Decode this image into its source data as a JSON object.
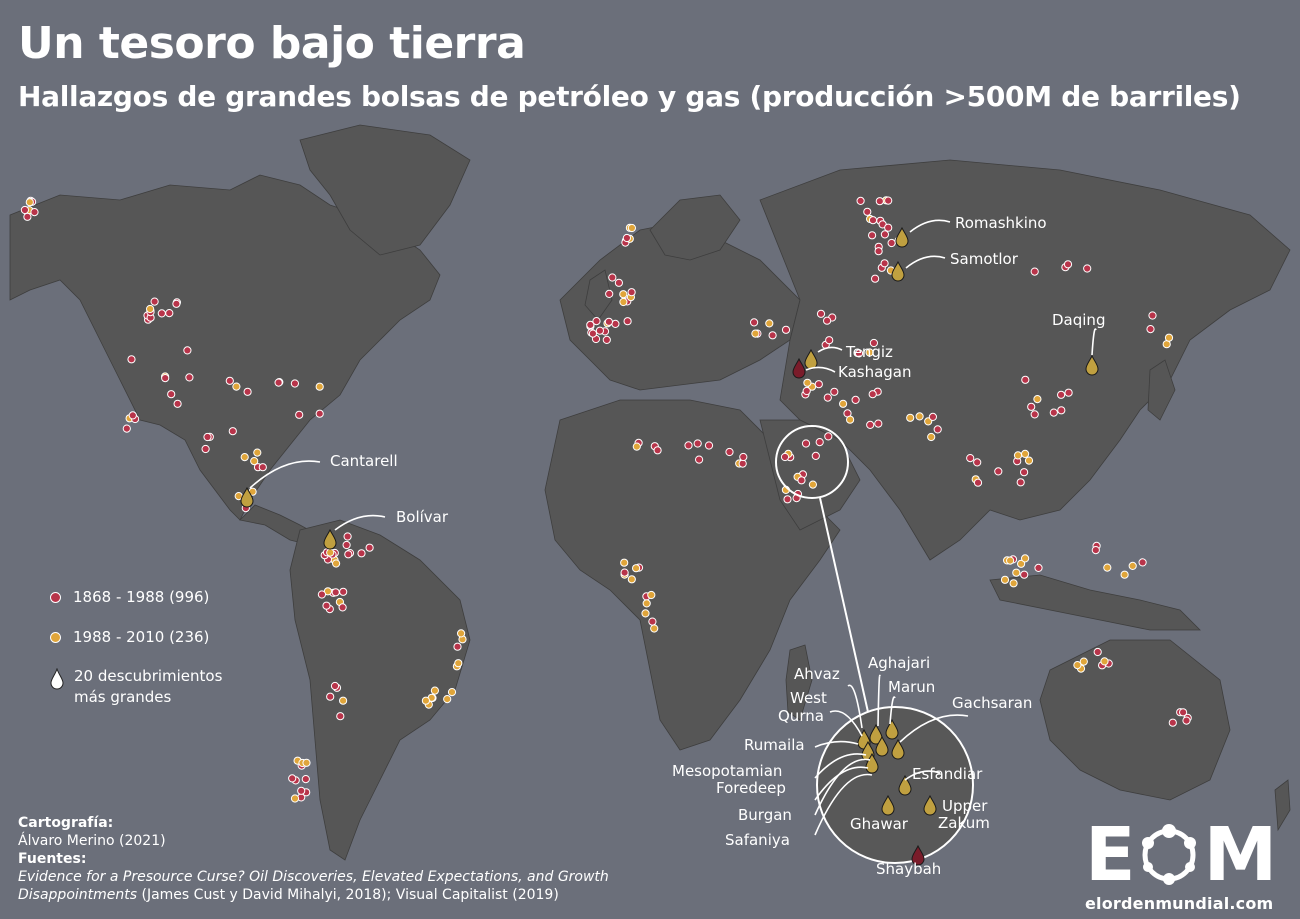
{
  "title": "Un tesoro bajo tierra",
  "subtitle": "Hallazgos de grandes bolsas de petróleo y gas (producción >500M de barriles)",
  "colors": {
    "ocean": "#6b6f7a",
    "land": "#565656",
    "period_1": "#b8344a",
    "period_2": "#e0a53a",
    "largest": "#c0a040",
    "largest_dark": "#7a1c2a"
  },
  "legend": {
    "period_1": "1868 - 1988 (996)",
    "period_2": "1988 - 2010 (236)",
    "largest_line1": "20 descubrimientos",
    "largest_line2": "más grandes"
  },
  "fields": {
    "romashkino": "Romashkino",
    "samotlor": "Samotlor",
    "daqing": "Daqing",
    "tengiz": "Tengiz",
    "kashagan": "Kashagan",
    "cantarell": "Cantarell",
    "bolivar": "Bolívar",
    "aghajari": "Aghajari",
    "ahvaz": "Ahvaz",
    "marun": "Marun",
    "west_qurna_1": "West",
    "west_qurna_2": "Qurna",
    "gachsaran": "Gachsaran",
    "rumaila": "Rumaila",
    "mesopotamian": "Mesopotamian",
    "foredeep": "Foredeep",
    "esfandiar": "Esfandiar",
    "burgan": "Burgan",
    "upper_zakum_1": "Upper",
    "upper_zakum_2": "Zakum",
    "ghawar": "Ghawar",
    "safaniya": "Safaniya",
    "shaybah": "Shaybah"
  },
  "credits": {
    "cartography_label": "Cartografía:",
    "cartography_value": "Álvaro Merino (2021)",
    "sources_label": "Fuentes:",
    "source_italic_1": "Evidence for a Presource Curse? Oil Discoveries, Elevated Expectations, and Growth",
    "source_italic_2": "Disappointments",
    "source_rest": " (James Cust y David Mihalyi, 2018); Visual Capitalist (2019)"
  },
  "logo": {
    "letter_e": "E",
    "letter_m": "M",
    "url": "elordenmundial.com"
  }
}
